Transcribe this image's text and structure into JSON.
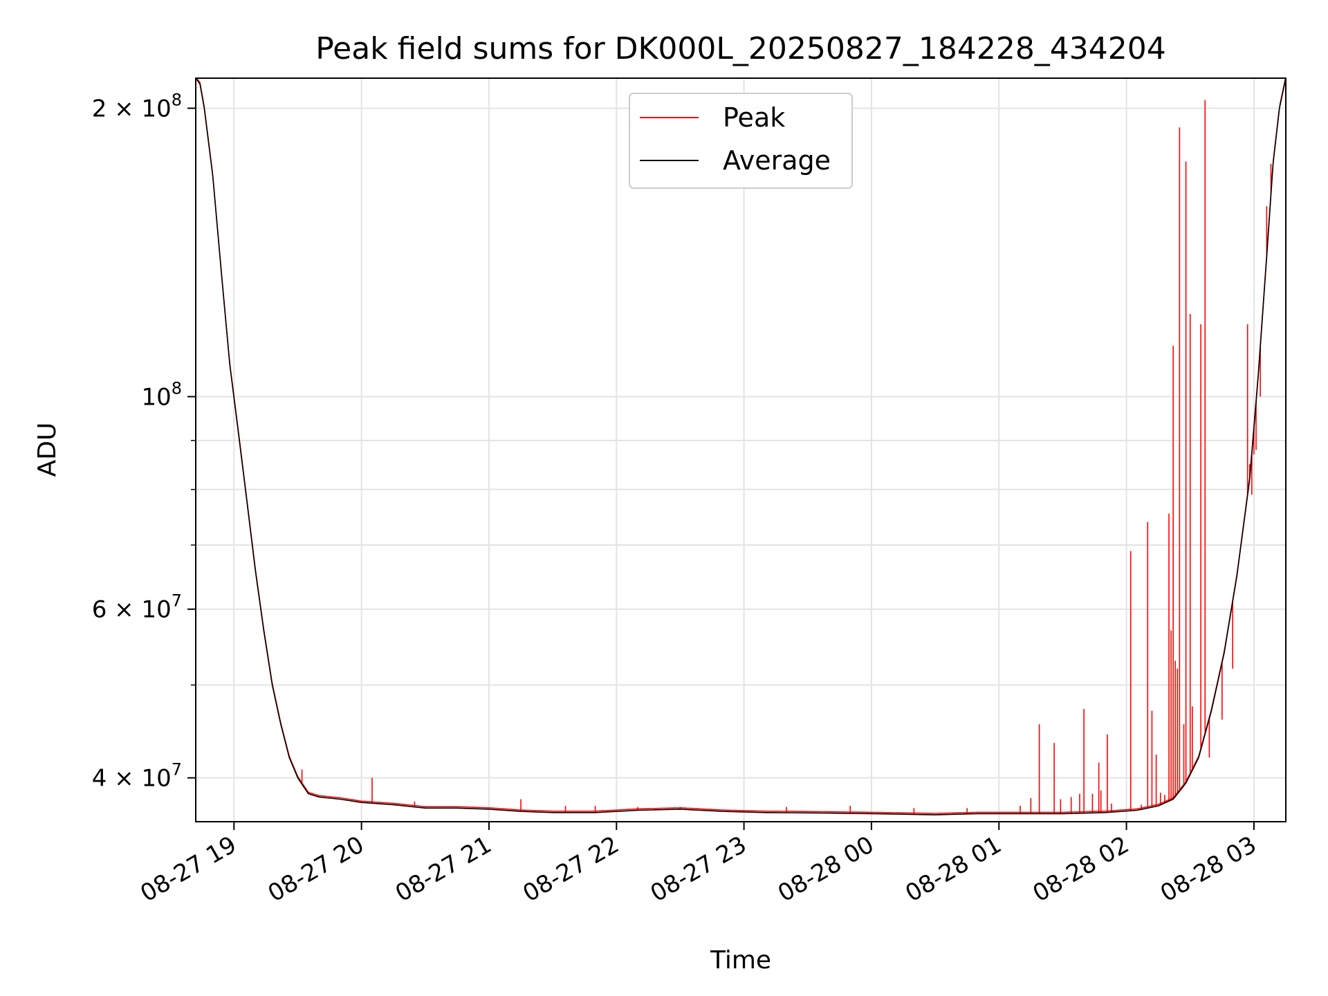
{
  "chart_data": {
    "type": "line",
    "title": "Peak field sums for DK000L_20250827_184228_434204",
    "xlabel": "Time",
    "ylabel": "ADU",
    "x_range": [
      "2025-08-27 18:42",
      "2025-08-28 03:15"
    ],
    "x_ticks": [
      "08-27 19",
      "08-27 20",
      "08-27 21",
      "08-27 22",
      "08-27 23",
      "08-28 00",
      "08-28 01",
      "08-28 02",
      "08-28 03"
    ],
    "y_scale": "log",
    "y_range": [
      36000000,
      215000000
    ],
    "y_ticks": [
      {
        "value": 200000000,
        "mantissa": "2",
        "exponent": "8"
      },
      {
        "value": 100000000,
        "mantissa": "",
        "exponent": "8"
      },
      {
        "value": 60000000,
        "mantissa": "6",
        "exponent": "7"
      },
      {
        "value": 40000000,
        "mantissa": "4",
        "exponent": "7"
      }
    ],
    "y_minor_ticks": [
      50000000,
      70000000,
      80000000,
      90000000
    ],
    "grid": true,
    "legend_position": "top-center",
    "legend": [
      {
        "label": "Peak",
        "color": "#ff0000"
      },
      {
        "label": "Average",
        "color": "#000000"
      }
    ],
    "series": [
      {
        "name": "Average",
        "color": "#000000",
        "points": [
          [
            "2025-08-27 18:42",
            215000000
          ],
          [
            "2025-08-27 18:44",
            212000000
          ],
          [
            "2025-08-27 18:46",
            200000000
          ],
          [
            "2025-08-27 18:50",
            170000000
          ],
          [
            "2025-08-27 18:54",
            135000000
          ],
          [
            "2025-08-27 18:58",
            108000000
          ],
          [
            "2025-08-27 19:02",
            92000000
          ],
          [
            "2025-08-27 19:06",
            78000000
          ],
          [
            "2025-08-27 19:10",
            66000000
          ],
          [
            "2025-08-27 19:14",
            57000000
          ],
          [
            "2025-08-27 19:18",
            50000000
          ],
          [
            "2025-08-27 19:22",
            45500000
          ],
          [
            "2025-08-27 19:26",
            42000000
          ],
          [
            "2025-08-27 19:30",
            40000000
          ],
          [
            "2025-08-27 19:35",
            38500000
          ],
          [
            "2025-08-27 19:40",
            38200000
          ],
          [
            "2025-08-27 19:50",
            38000000
          ],
          [
            "2025-08-27 20:00",
            37700000
          ],
          [
            "2025-08-27 20:15",
            37500000
          ],
          [
            "2025-08-27 20:30",
            37200000
          ],
          [
            "2025-08-27 20:45",
            37200000
          ],
          [
            "2025-08-27 21:00",
            37100000
          ],
          [
            "2025-08-27 21:15",
            36900000
          ],
          [
            "2025-08-27 21:30",
            36800000
          ],
          [
            "2025-08-27 21:50",
            36800000
          ],
          [
            "2025-08-27 22:10",
            37000000
          ],
          [
            "2025-08-27 22:30",
            37100000
          ],
          [
            "2025-08-27 22:50",
            36900000
          ],
          [
            "2025-08-27 23:10",
            36800000
          ],
          [
            "2025-08-27 23:40",
            36750000
          ],
          [
            "2025-08-28 00:00",
            36700000
          ],
          [
            "2025-08-28 00:30",
            36600000
          ],
          [
            "2025-08-28 00:50",
            36700000
          ],
          [
            "2025-08-28 01:10",
            36700000
          ],
          [
            "2025-08-28 01:30",
            36700000
          ],
          [
            "2025-08-28 01:50",
            36800000
          ],
          [
            "2025-08-28 02:05",
            37000000
          ],
          [
            "2025-08-28 02:15",
            37400000
          ],
          [
            "2025-08-28 02:22",
            38000000
          ],
          [
            "2025-08-28 02:28",
            39500000
          ],
          [
            "2025-08-28 02:34",
            42000000
          ],
          [
            "2025-08-28 02:40",
            47000000
          ],
          [
            "2025-08-28 02:46",
            54000000
          ],
          [
            "2025-08-28 02:52",
            65000000
          ],
          [
            "2025-08-28 02:58",
            82000000
          ],
          [
            "2025-08-28 03:02",
            105000000
          ],
          [
            "2025-08-28 03:06",
            140000000
          ],
          [
            "2025-08-28 03:09",
            175000000
          ],
          [
            "2025-08-28 03:12",
            200000000
          ],
          [
            "2025-08-28 03:15",
            215000000
          ]
        ]
      },
      {
        "name": "Peak",
        "color": "#ff0000",
        "spikes": [
          [
            "2025-08-27 19:32",
            40800000
          ],
          [
            "2025-08-27 20:05",
            40000000
          ],
          [
            "2025-08-27 20:25",
            37800000
          ],
          [
            "2025-08-27 21:15",
            38000000
          ],
          [
            "2025-08-27 21:36",
            37400000
          ],
          [
            "2025-08-27 21:50",
            37400000
          ],
          [
            "2025-08-27 22:10",
            37300000
          ],
          [
            "2025-08-27 22:30",
            37300000
          ],
          [
            "2025-08-27 23:20",
            37300000
          ],
          [
            "2025-08-27 23:50",
            37400000
          ],
          [
            "2025-08-28 00:20",
            37200000
          ],
          [
            "2025-08-28 00:45",
            37200000
          ],
          [
            "2025-08-28 01:10",
            37400000
          ],
          [
            "2025-08-28 01:15",
            38100000
          ],
          [
            "2025-08-28 01:19",
            45500000
          ],
          [
            "2025-08-28 01:26",
            43500000
          ],
          [
            "2025-08-28 01:29",
            38000000
          ],
          [
            "2025-08-28 01:34",
            38200000
          ],
          [
            "2025-08-28 01:38",
            38500000
          ],
          [
            "2025-08-28 01:40",
            47200000
          ],
          [
            "2025-08-28 01:44",
            38500000
          ],
          [
            "2025-08-28 01:47",
            41500000
          ],
          [
            "2025-08-28 01:48",
            38800000
          ],
          [
            "2025-08-28 01:51",
            44400000
          ],
          [
            "2025-08-28 01:53",
            37600000
          ],
          [
            "2025-08-28 02:02",
            69000000
          ],
          [
            "2025-08-28 02:07",
            37500000
          ],
          [
            "2025-08-28 02:10",
            74000000
          ],
          [
            "2025-08-28 02:12",
            47000000
          ],
          [
            "2025-08-28 02:14",
            42300000
          ],
          [
            "2025-08-28 02:16",
            38600000
          ],
          [
            "2025-08-28 02:18",
            38400000
          ],
          [
            "2025-08-28 02:20",
            75500000
          ],
          [
            "2025-08-28 02:21",
            57000000
          ],
          [
            "2025-08-28 02:22",
            113000000
          ],
          [
            "2025-08-28 02:23",
            53000000
          ],
          [
            "2025-08-28 02:24",
            52000000
          ],
          [
            "2025-08-28 02:25",
            191000000
          ],
          [
            "2025-08-28 02:27",
            45500000
          ],
          [
            "2025-08-28 02:28",
            176000000
          ],
          [
            "2025-08-28 02:30",
            122000000
          ],
          [
            "2025-08-28 02:31",
            47500000
          ],
          [
            "2025-08-28 02:35",
            119000000
          ],
          [
            "2025-08-28 02:37",
            204000000
          ],
          [
            "2025-08-28 02:39",
            42000000
          ],
          [
            "2025-08-28 02:45",
            46000000
          ],
          [
            "2025-08-28 02:50",
            52000000
          ],
          [
            "2025-08-28 02:57",
            119000000
          ],
          [
            "2025-08-28 02:58",
            85000000
          ],
          [
            "2025-08-28 02:59",
            79000000
          ],
          [
            "2025-08-28 03:00",
            87000000
          ],
          [
            "2025-08-28 03:01",
            88000000
          ],
          [
            "2025-08-28 03:03",
            100000000
          ],
          [
            "2025-08-28 03:06",
            158000000
          ],
          [
            "2025-08-28 03:08",
            175000000
          ]
        ]
      }
    ]
  }
}
